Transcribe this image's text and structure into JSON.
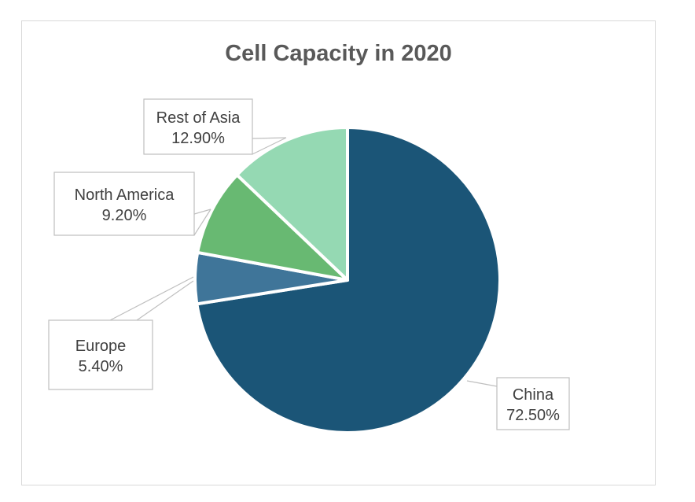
{
  "chart_data": {
    "type": "pie",
    "title": "Cell Capacity in 2020",
    "start_angle_deg": 0,
    "direction": "clockwise",
    "slices": [
      {
        "label": "China",
        "value": 72.5,
        "display": "72.50%",
        "color": "#1b5577"
      },
      {
        "label": "Europe",
        "value": 5.4,
        "display": "5.40%",
        "color": "#3f7599"
      },
      {
        "label": "North America",
        "value": 9.2,
        "display": "9.20%",
        "color": "#68b972"
      },
      {
        "label": "Rest of Asia",
        "value": 12.9,
        "display": "12.90%",
        "color": "#95d9b3"
      }
    ]
  }
}
